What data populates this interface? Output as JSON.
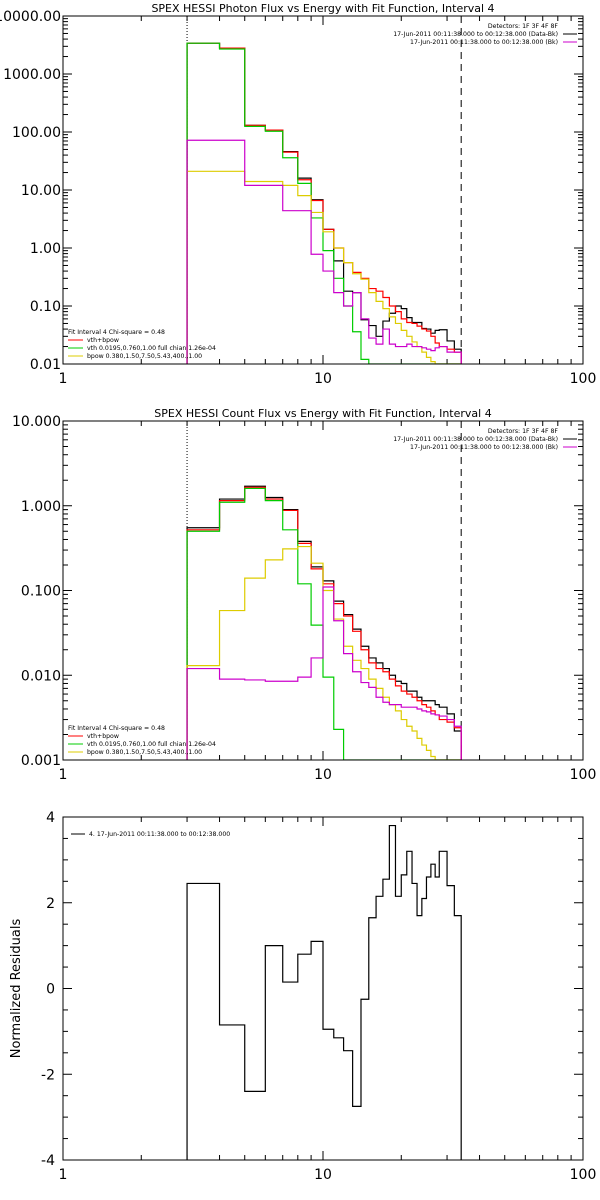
{
  "figure": {
    "background": "#ffffff",
    "colors": {
      "axis": "#000000",
      "data": "#000000",
      "total": "#ff0000",
      "vth": "#00cc00",
      "bpow": "#ddcc00",
      "bk": "#cc00cc"
    }
  },
  "chart_data": [
    {
      "type": "line",
      "drawstyle": "steps",
      "title": "SPEX HESSI Photon Flux vs Energy with Fit Function, Interval 4",
      "xscale": "log",
      "yscale": "log",
      "xlim": [
        1,
        100
      ],
      "ylim": [
        0.01,
        10000
      ],
      "xticks": [
        "1",
        "10",
        "100"
      ],
      "yticks": [
        "0.01",
        "0.10",
        "1.00",
        "10.00",
        "100.00",
        "1000.00",
        "10000.00"
      ],
      "top_right_labels": [
        {
          "text": "Detectors: 1F 3F 4F 8F",
          "color": "#000000"
        },
        {
          "text": "17-Jun-2011 00:11:38.000 to 00:12:38.000 (Data-Bk)",
          "color": "#000000"
        },
        {
          "text": "17-Jun-2011 00:11:38.000 to 00:12:38.000 (Bk)",
          "color": "#cc00cc"
        }
      ],
      "bottom_left_labels": [
        {
          "text": "Fit Interval  4    Chi-square = 0.48",
          "color": "#000000"
        },
        {
          "text": "vth+bpow",
          "color": "#ff0000"
        },
        {
          "text": "vth 0.0195,0.760,1.00  full chian 1.26e-04",
          "color": "#00cc00"
        },
        {
          "text": "bpow 0.380,1.50,7.50,5.43,400.,1.00",
          "color": "#ddcc00"
        }
      ],
      "vlines": [
        {
          "x": 3.0,
          "style": "dotted"
        },
        {
          "x": 34,
          "style": "dashed"
        }
      ],
      "x_edges": [
        3,
        4,
        5,
        6,
        7,
        8,
        9,
        10,
        11,
        12,
        13,
        14,
        15,
        16,
        17,
        18,
        19,
        20,
        21,
        22,
        23,
        24,
        25,
        26,
        27,
        28,
        30,
        32,
        34
      ],
      "series": [
        {
          "name": "Data-Bk",
          "color": "#000000",
          "values": [
            3400,
            2800,
            130,
            108,
            46,
            16,
            6.8,
            2.1,
            0.6,
            0.18,
            0.17,
            0.058,
            0.046,
            0.03,
            0.055,
            0.075,
            0.1,
            0.09,
            0.063,
            0.052,
            0.052,
            0.041,
            0.04,
            0.034,
            0.038,
            0.039,
            0.025,
            0.018
          ]
        },
        {
          "name": "vth+bpow",
          "color": "#ff0000",
          "values": [
            3400,
            2800,
            130,
            108,
            45,
            15,
            6.6,
            2.1,
            1.0,
            0.56,
            0.38,
            0.3,
            0.2,
            0.18,
            0.14,
            0.1,
            0.08,
            0.06,
            0.052,
            0.05,
            0.045,
            0.04,
            0.037,
            0.03,
            0.023,
            0.02,
            0.018,
            0.016
          ]
        },
        {
          "name": "vth",
          "color": "#00cc00",
          "values": [
            3400,
            2700,
            125,
            103,
            36,
            13,
            3.3,
            0.9,
            0.3,
            0.1,
            0.036,
            0.012,
            0.01,
            0.01,
            0.01,
            0.01,
            0.01,
            0.01,
            0.01,
            0.01,
            0.01,
            0.01,
            0.01,
            0.01,
            0.01,
            0.01,
            0.01,
            0.01
          ]
        },
        {
          "name": "bpow",
          "color": "#ddcc00",
          "values": [
            21,
            21,
            14,
            14,
            12,
            8,
            4.1,
            1.9,
            1.0,
            0.56,
            0.36,
            0.29,
            0.17,
            0.12,
            0.09,
            0.065,
            0.05,
            0.038,
            0.03,
            0.024,
            0.02,
            0.016,
            0.013,
            0.011,
            0.01,
            0.01,
            0.01,
            0.01
          ]
        },
        {
          "name": "Bk",
          "color": "#cc00cc",
          "values": [
            72,
            72,
            12,
            12,
            4.4,
            4.4,
            0.78,
            0.4,
            0.17,
            0.1,
            0.17,
            0.06,
            0.028,
            0.022,
            0.04,
            0.022,
            0.02,
            0.02,
            0.022,
            0.02,
            0.02,
            0.019,
            0.018,
            0.017,
            0.019,
            0.02,
            0.016,
            0.016
          ]
        }
      ]
    },
    {
      "type": "line",
      "drawstyle": "steps",
      "title": "SPEX HESSI Count Flux vs Energy with Fit Function, Interval 4",
      "xscale": "log",
      "yscale": "log",
      "xlim": [
        1,
        100
      ],
      "ylim": [
        0.001,
        10
      ],
      "xticks": [
        "1",
        "10",
        "100"
      ],
      "yticks": [
        "0.001",
        "0.010",
        "0.100",
        "1.000",
        "10.000"
      ],
      "top_right_labels": [
        {
          "text": "Detectors: 1F 3F 4F 8F",
          "color": "#000000"
        },
        {
          "text": "17-Jun-2011 00:11:38.000 to 00:12:38.000 (Data-Bk)",
          "color": "#000000"
        },
        {
          "text": "17-Jun-2011 00:11:38.000 to 00:12:38.000 (Bk)",
          "color": "#cc00cc"
        }
      ],
      "bottom_left_labels": [
        {
          "text": "Fit Interval  4    Chi-square = 0.48",
          "color": "#000000"
        },
        {
          "text": "vth+bpow",
          "color": "#ff0000"
        },
        {
          "text": "vth 0.0195,0.760,1.00  full chian 1.26e-04",
          "color": "#00cc00"
        },
        {
          "text": "bpow 0.380,1.50,7.50,5.43,400.,1.00",
          "color": "#ddcc00"
        }
      ],
      "vlines": [
        {
          "x": 3.0,
          "style": "dotted"
        },
        {
          "x": 34,
          "style": "dashed"
        }
      ],
      "x_edges": [
        3,
        4,
        5,
        6,
        7,
        8,
        9,
        10,
        11,
        12,
        13,
        14,
        15,
        16,
        17,
        18,
        19,
        20,
        21,
        22,
        23,
        24,
        25,
        26,
        27,
        28,
        30,
        32,
        34
      ],
      "series": [
        {
          "name": "Data-Bk",
          "color": "#000000",
          "values": [
            0.55,
            1.2,
            1.7,
            1.25,
            0.9,
            0.38,
            0.19,
            0.13,
            0.075,
            0.052,
            0.035,
            0.022,
            0.016,
            0.014,
            0.012,
            0.01,
            0.0085,
            0.008,
            0.0065,
            0.0065,
            0.0055,
            0.005,
            0.005,
            0.005,
            0.0045,
            0.0042,
            0.0035,
            0.0022
          ]
        },
        {
          "name": "vth+bpow",
          "color": "#ff0000",
          "values": [
            0.52,
            1.15,
            1.65,
            1.2,
            0.88,
            0.36,
            0.18,
            0.12,
            0.07,
            0.05,
            0.033,
            0.02,
            0.014,
            0.012,
            0.011,
            0.009,
            0.0075,
            0.0065,
            0.006,
            0.0055,
            0.005,
            0.0045,
            0.0042,
            0.0038,
            0.0034,
            0.003,
            0.0028,
            0.0024
          ]
        },
        {
          "name": "vth",
          "color": "#00cc00",
          "values": [
            0.5,
            1.1,
            1.6,
            1.15,
            0.52,
            0.12,
            0.039,
            0.0095,
            0.0023,
            0.001,
            0.001,
            0.001,
            0.001,
            0.001,
            0.001,
            0.001,
            0.001,
            0.001,
            0.001,
            0.001,
            0.001,
            0.001,
            0.001,
            0.001,
            0.001,
            0.001,
            0.001,
            0.001
          ]
        },
        {
          "name": "bpow",
          "color": "#ddcc00",
          "values": [
            0.013,
            0.058,
            0.14,
            0.23,
            0.31,
            0.33,
            0.21,
            0.1,
            0.046,
            0.022,
            0.015,
            0.012,
            0.009,
            0.007,
            0.0055,
            0.0045,
            0.0038,
            0.003,
            0.0025,
            0.0022,
            0.0018,
            0.0015,
            0.0013,
            0.0011,
            0.001,
            0.001,
            0.001,
            0.001
          ]
        },
        {
          "name": "Bk",
          "color": "#cc00cc",
          "values": [
            0.012,
            0.009,
            0.0088,
            0.0085,
            0.0085,
            0.0095,
            0.016,
            0.11,
            0.044,
            0.018,
            0.011,
            0.0082,
            0.0072,
            0.0055,
            0.0048,
            0.0045,
            0.0045,
            0.0042,
            0.0042,
            0.0042,
            0.004,
            0.0038,
            0.0037,
            0.0035,
            0.0034,
            0.0033,
            0.003,
            0.0025
          ]
        }
      ]
    },
    {
      "type": "line",
      "drawstyle": "steps",
      "title": "",
      "xscale": "log",
      "yscale": "linear",
      "xlim": [
        1,
        100
      ],
      "ylim": [
        -4,
        4
      ],
      "xticks": [
        "1",
        "10",
        "100"
      ],
      "yticks": [
        "-4",
        "-2",
        "0",
        "2",
        "4"
      ],
      "ylabel": "Normalized Residuals",
      "legend_label": "4. 17-Jun-2011 00:11:38.000 to 00:12:38.000",
      "x_edges": [
        3,
        4,
        5,
        6,
        7,
        8,
        9,
        10,
        11,
        12,
        13,
        14,
        15,
        16,
        17,
        18,
        19,
        20,
        21,
        22,
        23,
        24,
        25,
        26,
        27,
        28,
        30,
        32,
        34
      ],
      "series": [
        {
          "name": "",
          "color": "#000000",
          "values": [
            2.45,
            -0.85,
            -2.4,
            1.0,
            0.15,
            0.8,
            1.1,
            -0.95,
            -1.15,
            -1.45,
            -2.75,
            -0.25,
            1.65,
            2.15,
            2.55,
            3.8,
            2.15,
            2.65,
            3.2,
            2.45,
            1.7,
            2.1,
            2.6,
            2.9,
            2.6,
            3.2,
            2.4,
            1.7
          ]
        }
      ]
    }
  ]
}
